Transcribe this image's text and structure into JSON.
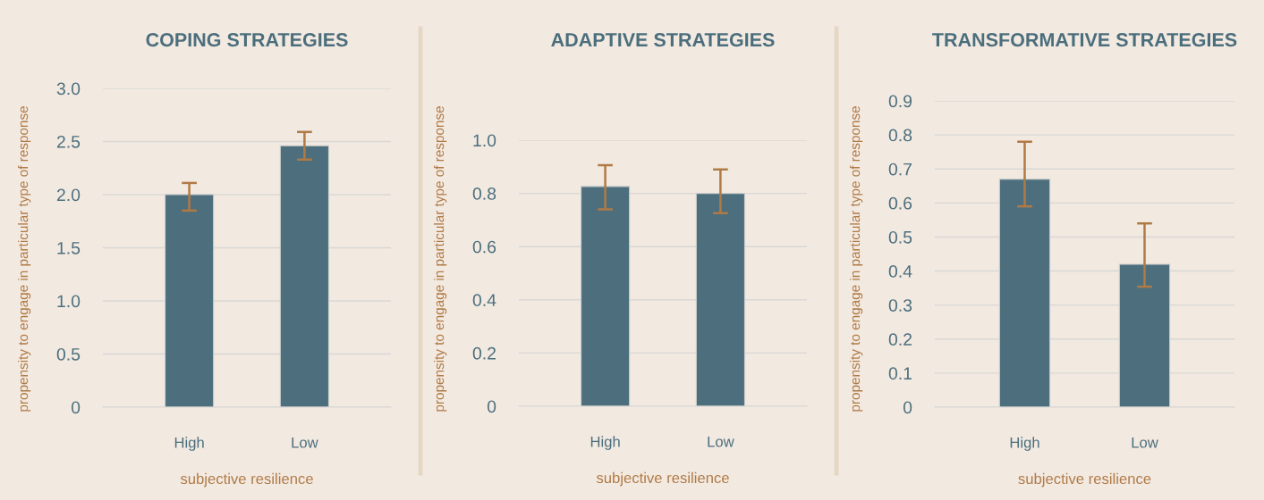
{
  "chart_data": [
    {
      "type": "bar",
      "title": "COPING STRATEGIES",
      "xlabel": "subjective resilience",
      "ylabel": "propensity to engage in particular type of response",
      "categories": [
        "High",
        "Low"
      ],
      "values": [
        2.0,
        2.46
      ],
      "errors": [
        [
          1.85,
          2.11
        ],
        [
          2.33,
          2.59
        ]
      ],
      "color": "#4d6e7d",
      "ylim": [
        0,
        3.0
      ],
      "yticks": [
        0,
        0.5,
        {
          "value": 1,
          "label": "1.0"
        },
        1.5,
        {
          "value": 2,
          "label": "2.0"
        },
        2.5,
        {
          "value": 3,
          "label": "3.0"
        }
      ],
      "grid": "y"
    },
    {
      "type": "bar",
      "title": "ADAPTIVE STRATEGIES",
      "xlabel": "subjective resilience",
      "ylabel": "propensity to engage in particular type of response",
      "categories": [
        "High",
        "Low"
      ],
      "values": [
        0.826,
        0.8
      ],
      "errors": [
        [
          0.74,
          0.906
        ],
        [
          0.726,
          0.89
        ]
      ],
      "color": "#4d6e7d",
      "ylim": [
        0,
        1.0
      ],
      "yticks": [
        0,
        0.2,
        0.4,
        0.6,
        0.8,
        {
          "value": 1,
          "label": "1.0"
        }
      ],
      "grid": "y"
    },
    {
      "type": "bar",
      "title": "TRANSFORMATIVE STRATEGIES",
      "xlabel": "subjective resilience",
      "ylabel": "propensity to engage in particular type of response",
      "categories": [
        "High",
        "Low"
      ],
      "values": [
        0.67,
        0.42
      ],
      "errors": [
        [
          0.59,
          0.78
        ],
        [
          0.354,
          0.54
        ]
      ],
      "color": "#4d6e7d",
      "ylim": [
        0,
        0.9
      ],
      "yticks": [
        0,
        0.1,
        0.2,
        0.3,
        0.4,
        0.5,
        0.6,
        0.7,
        0.8,
        0.9
      ],
      "grid": "y"
    }
  ]
}
